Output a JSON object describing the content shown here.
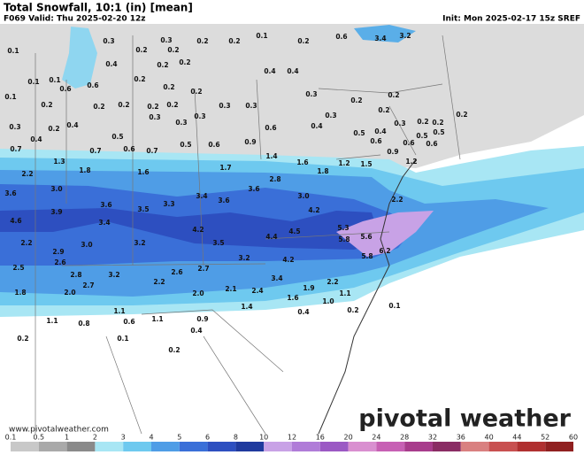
{
  "header": {
    "title": "Total Snowfall, 10:1 (in) [mean]",
    "valid": "F069 Valid: Thu 2025-02-20 12z",
    "init": "Init: Mon 2025-02-17 15z SREF"
  },
  "map": {
    "labels": [
      "0.1",
      "0.3",
      "0.3",
      "0.2",
      "0.2",
      "0.1",
      "0.2",
      "0.6",
      "3.4",
      "3.2",
      "0.2",
      "0.2",
      "0.4",
      "0.2",
      "0.2",
      "0.4",
      "0.4",
      "0.1",
      "0.1",
      "0.6",
      "0.6",
      "0.2",
      "0.1",
      "0.2",
      "0.2",
      "0.2",
      "0.2",
      "0.2",
      "0.3",
      "0.2",
      "0.2",
      "0.2",
      "0.2",
      "0.3",
      "0.3",
      "0.3",
      "0.2",
      "0.2",
      "0.2",
      "0.3",
      "0.2",
      "0.4",
      "0.3",
      "0.3",
      "0.3",
      "0.6",
      "0.4",
      "0.5",
      "0.4",
      "0.3",
      "0.2",
      "0.5",
      "0.5",
      "0.4",
      "0.5",
      "0.5",
      "0.6",
      "0.9",
      "0.6",
      "0.6",
      "0.6",
      "0.7",
      "0.7",
      "0.6",
      "0.7",
      "1.3",
      "1.4",
      "1.6",
      "1.2",
      "1.5",
      "1.2",
      "0.9",
      "2.2",
      "1.8",
      "1.6",
      "1.7",
      "1.8",
      "3.6",
      "3.0",
      "3.6",
      "2.8",
      "3.0",
      "2.2",
      "3.9",
      "3.6",
      "3.5",
      "3.3",
      "3.4",
      "3.6",
      "4.2",
      "4.6",
      "3.4",
      "4.2",
      "4.5",
      "4.4",
      "5.3",
      "5.8",
      "5.6",
      "2.2",
      "3.0",
      "3.2",
      "3.5",
      "5.8",
      "6.2",
      "2.9",
      "2.6",
      "3.2",
      "4.2",
      "2.5",
      "2.8",
      "3.2",
      "2.6",
      "2.7",
      "3.4",
      "2.7",
      "2.2",
      "2.1",
      "2.4",
      "1.9",
      "2.2",
      "1.8",
      "2.0",
      "2.0",
      "1.6",
      "1.0",
      "1.1",
      "1.4",
      "1.1",
      "0.6",
      "1.1",
      "0.9",
      "0.4",
      "0.2",
      "0.1",
      "1.1",
      "0.8",
      "0.4",
      "0.2",
      "0.1",
      "0.2"
    ]
  },
  "legend": {
    "ticks": [
      "0.1",
      "0.5",
      "1",
      "2",
      "3",
      "4",
      "5",
      "6",
      "8",
      "10",
      "12",
      "16",
      "20",
      "24",
      "28",
      "32",
      "36",
      "40",
      "44",
      "52",
      "60"
    ]
  },
  "footer": {
    "url": "www.pivotalweather.com",
    "logo": "pivotal weather"
  }
}
